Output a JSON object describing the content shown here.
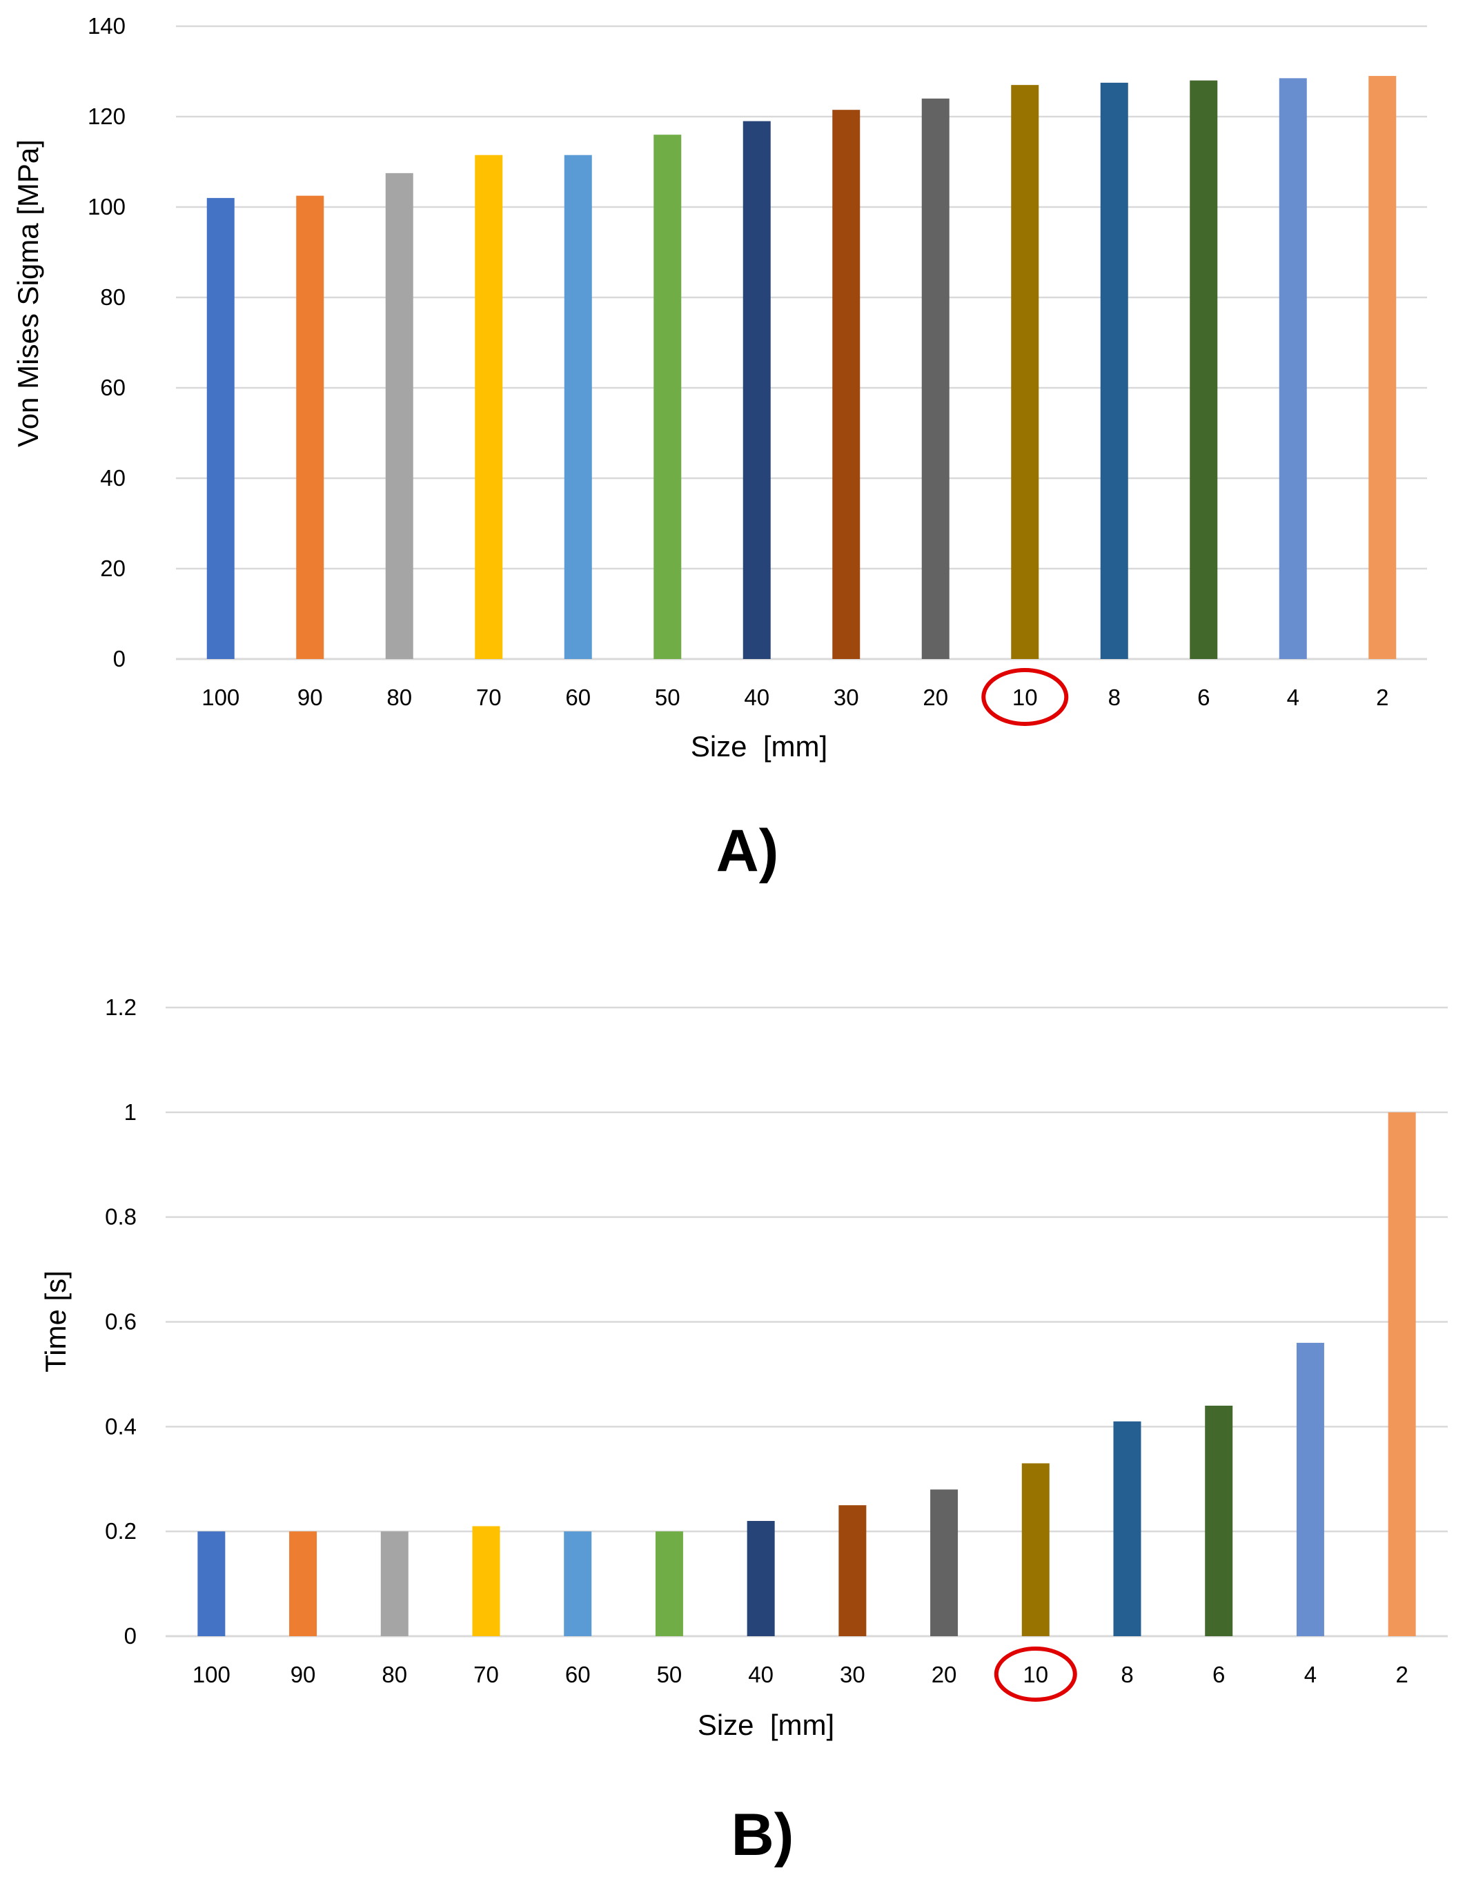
{
  "chart_data": [
    {
      "type": "bar",
      "panel_label": "A)",
      "xlabel": "Size  [mm]",
      "ylabel": "Von Mises Sigma [MPa]",
      "ylim": [
        0,
        140
      ],
      "yticks": [
        "0",
        "20",
        "40",
        "60",
        "80",
        "100",
        "120",
        "140"
      ],
      "categories": [
        "100",
        "90",
        "80",
        "70",
        "60",
        "50",
        "40",
        "30",
        "20",
        "10",
        "8",
        "6",
        "4",
        "2"
      ],
      "values": [
        102,
        102.5,
        107.5,
        111.5,
        111.5,
        116,
        119,
        121.5,
        124,
        127,
        127.5,
        128,
        128.5,
        129
      ],
      "colors": [
        "#4472c4",
        "#ed7d31",
        "#a5a5a5",
        "#ffc000",
        "#5b9bd5",
        "#70ad47",
        "#264478",
        "#9e480e",
        "#636363",
        "#997300",
        "#255e91",
        "#43682b",
        "#698ed0",
        "#f1975a"
      ],
      "highlighted_category": "10",
      "highlight_color": "#e00000",
      "grid": true
    },
    {
      "type": "bar",
      "panel_label": "B)",
      "xlabel": "Size  [mm]",
      "ylabel": "Time [s]",
      "ylim": [
        0,
        1.2
      ],
      "yticks": [
        "0",
        "0.2",
        "0.4",
        "0.6",
        "0.8",
        "1",
        "1.2"
      ],
      "categories": [
        "100",
        "90",
        "80",
        "70",
        "60",
        "50",
        "40",
        "30",
        "20",
        "10",
        "8",
        "6",
        "4",
        "2"
      ],
      "values": [
        0.2,
        0.2,
        0.2,
        0.21,
        0.2,
        0.2,
        0.22,
        0.25,
        0.28,
        0.33,
        0.41,
        0.44,
        0.56,
        1.0
      ],
      "colors": [
        "#4472c4",
        "#ed7d31",
        "#a5a5a5",
        "#ffc000",
        "#5b9bd5",
        "#70ad47",
        "#264478",
        "#9e480e",
        "#636363",
        "#997300",
        "#255e91",
        "#43682b",
        "#698ed0",
        "#f1975a"
      ],
      "highlighted_category": "10",
      "highlight_color": "#e00000",
      "grid": true
    }
  ]
}
